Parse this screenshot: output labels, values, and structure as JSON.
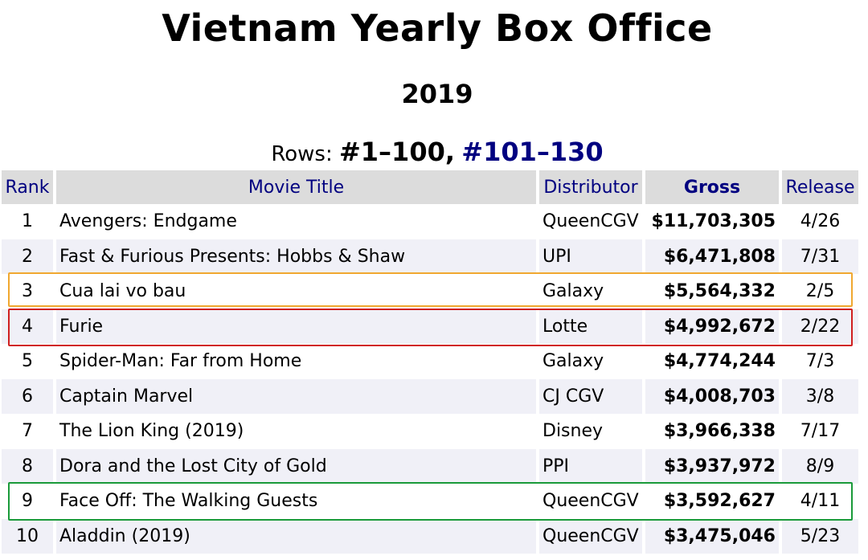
{
  "header": {
    "title": "Vietnam Yearly Box Office",
    "year": "2019",
    "rows_label": "Rows:",
    "rows_current": "#1–100",
    "rows_sep": ",",
    "rows_next": "#101–130"
  },
  "table": {
    "columns": {
      "rank": "Rank",
      "title": "Movie Title",
      "distributor": "Distributor",
      "gross": "Gross",
      "release": "Release"
    },
    "rows": [
      {
        "rank": "1",
        "title": "Avengers: Endgame",
        "distributor": "QueenCGV",
        "gross": "$11,703,305",
        "release": "4/26"
      },
      {
        "rank": "2",
        "title": "Fast & Furious Presents: Hobbs & Shaw",
        "distributor": "UPI",
        "gross": "$6,471,808",
        "release": "7/31"
      },
      {
        "rank": "3",
        "title": "Cua lai vo bau",
        "distributor": "Galaxy",
        "gross": "$5,564,332",
        "release": "2/5"
      },
      {
        "rank": "4",
        "title": "Furie",
        "distributor": "Lotte",
        "gross": "$4,992,672",
        "release": "2/22"
      },
      {
        "rank": "5",
        "title": "Spider-Man: Far from Home",
        "distributor": "Galaxy",
        "gross": "$4,774,244",
        "release": "7/3"
      },
      {
        "rank": "6",
        "title": "Captain Marvel",
        "distributor": "CJ CGV",
        "gross": "$4,008,703",
        "release": "3/8"
      },
      {
        "rank": "7",
        "title": "The Lion King (2019)",
        "distributor": "Disney",
        "gross": "$3,966,338",
        "release": "7/17"
      },
      {
        "rank": "8",
        "title": "Dora and the Lost City of Gold",
        "distributor": "PPI",
        "gross": "$3,937,972",
        "release": "8/9"
      },
      {
        "rank": "9",
        "title": "Face Off: The Walking Guests",
        "distributor": "QueenCGV",
        "gross": "$3,592,627",
        "release": "4/11"
      },
      {
        "rank": "10",
        "title": "Aladdin (2019)",
        "distributor": "QueenCGV",
        "gross": "$3,475,046",
        "release": "5/23"
      }
    ]
  },
  "highlights": {
    "orange": "#f0a830",
    "red": "#d02020",
    "green": "#1a9a3a"
  }
}
